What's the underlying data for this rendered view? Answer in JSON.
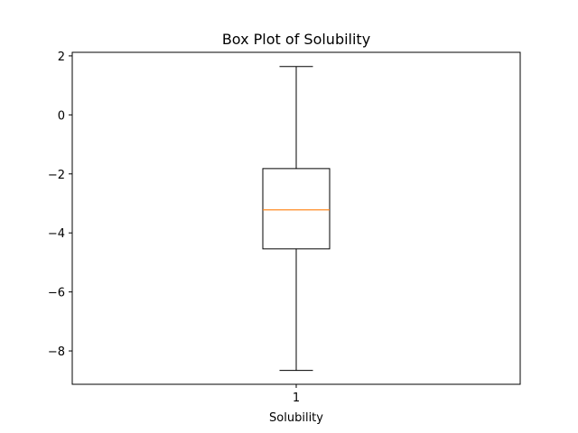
{
  "chart_data": {
    "type": "box",
    "title": "Box Plot of Solubility",
    "xlabel": "Solubility",
    "ylabel": "",
    "categories": [
      "1"
    ],
    "boxes": [
      {
        "category": "1",
        "whisker_low": -8.66,
        "q1": -4.54,
        "median": -3.22,
        "q3": -1.82,
        "whisker_high": 1.64
      }
    ],
    "y_ticks": [
      2,
      0,
      -2,
      -4,
      -6,
      -8
    ],
    "y_tick_labels": [
      "2",
      "0",
      "−2",
      "−4",
      "−6",
      "−8"
    ],
    "ylim": [
      -9.13,
      2.12
    ],
    "grid": false,
    "colors": {
      "box": "#000000",
      "median": "#ff7f0e",
      "whisker": "#000000"
    }
  }
}
